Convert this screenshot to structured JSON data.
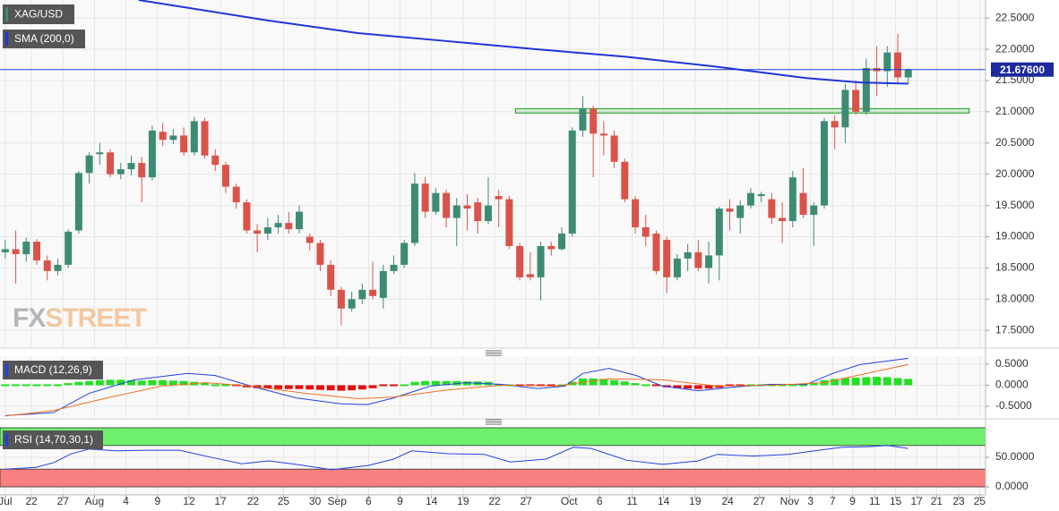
{
  "chart_data": [
    {
      "type": "candlestick",
      "title": "XAG/USD",
      "open": [
        18.75,
        18.8,
        18.72,
        18.92,
        18.62,
        18.45,
        18.55,
        19.1,
        20.02,
        20.32,
        20.35,
        20.0,
        20.08,
        20.18,
        19.95,
        20.68,
        20.55,
        20.62,
        20.35,
        20.85,
        20.3,
        20.15,
        19.8,
        19.55,
        19.1,
        19.05,
        19.15,
        19.22,
        19.12,
        19.0,
        18.9,
        18.55,
        18.15,
        17.85,
        18.0,
        18.15,
        18.02,
        18.45,
        18.55,
        18.9,
        19.85,
        19.4,
        19.7,
        19.3,
        19.5,
        19.55,
        19.25,
        19.65,
        19.6,
        18.85,
        18.4,
        18.35,
        18.85,
        18.8,
        19.05,
        20.7,
        21.05,
        20.65,
        20.62,
        20.2,
        19.6,
        19.15,
        19.05,
        18.95,
        18.35,
        18.65,
        18.75,
        18.5,
        18.7,
        19.45,
        19.3,
        19.5,
        19.65,
        19.6,
        19.3,
        19.25,
        19.7,
        19.35,
        19.5,
        20.85,
        20.75,
        21.35,
        21.0,
        21.7,
        21.65,
        21.95,
        21.55
      ],
      "high": [
        18.95,
        19.1,
        18.98,
        18.96,
        18.7,
        18.65,
        19.12,
        20.05,
        20.35,
        20.5,
        20.4,
        20.18,
        20.3,
        20.28,
        20.78,
        20.82,
        20.72,
        20.75,
        20.92,
        20.9,
        20.4,
        20.2,
        19.85,
        19.6,
        19.2,
        19.3,
        19.35,
        19.4,
        19.5,
        19.05,
        18.95,
        18.62,
        18.2,
        18.12,
        18.25,
        18.6,
        18.55,
        18.7,
        18.95,
        20.02,
        19.95,
        19.78,
        19.75,
        19.62,
        19.68,
        19.62,
        19.95,
        19.75,
        19.65,
        18.9,
        18.75,
        18.92,
        18.92,
        19.15,
        20.75,
        21.25,
        21.1,
        20.85,
        20.7,
        20.25,
        19.65,
        19.35,
        19.1,
        19.0,
        18.72,
        18.88,
        18.95,
        18.92,
        19.48,
        19.6,
        19.58,
        19.78,
        19.72,
        19.7,
        19.55,
        20.05,
        20.1,
        19.55,
        20.9,
        20.95,
        21.45,
        21.5,
        21.85,
        22.05,
        22.05,
        22.25,
        21.7
      ],
      "low": [
        18.65,
        18.25,
        18.6,
        18.55,
        18.3,
        18.38,
        18.5,
        19.05,
        19.85,
        20.15,
        19.95,
        19.92,
        19.98,
        19.55,
        19.9,
        20.45,
        20.48,
        20.3,
        20.3,
        20.25,
        20.05,
        19.7,
        19.45,
        19.05,
        18.75,
        18.95,
        19.05,
        19.05,
        19.05,
        18.78,
        18.45,
        18.05,
        17.58,
        17.8,
        17.92,
        18.0,
        17.85,
        18.4,
        18.5,
        18.85,
        19.3,
        19.35,
        19.15,
        18.85,
        19.1,
        19.05,
        19.2,
        19.15,
        18.8,
        18.3,
        18.3,
        17.98,
        18.7,
        18.78,
        19.0,
        20.6,
        19.95,
        20.3,
        20.1,
        19.55,
        19.05,
        18.85,
        18.4,
        18.1,
        18.3,
        18.45,
        18.45,
        18.25,
        18.3,
        19.1,
        19.05,
        19.45,
        19.55,
        19.2,
        18.9,
        19.15,
        19.3,
        18.85,
        19.45,
        20.4,
        20.5,
        20.95,
        20.95,
        21.25,
        21.4,
        21.45,
        21.45
      ],
      "close": [
        18.8,
        18.72,
        18.92,
        18.62,
        18.45,
        18.55,
        19.08,
        20.02,
        20.3,
        20.35,
        20.0,
        20.08,
        20.18,
        19.95,
        20.7,
        20.55,
        20.62,
        20.35,
        20.85,
        20.3,
        20.15,
        19.8,
        19.55,
        19.1,
        19.05,
        19.15,
        19.22,
        19.12,
        19.4,
        18.9,
        18.55,
        18.15,
        17.85,
        18.0,
        18.15,
        18.05,
        18.45,
        18.55,
        18.9,
        19.85,
        19.4,
        19.7,
        19.3,
        19.5,
        19.45,
        19.25,
        19.5,
        19.6,
        18.85,
        18.35,
        18.35,
        18.85,
        18.8,
        19.05,
        20.7,
        21.05,
        20.65,
        20.62,
        20.2,
        19.6,
        19.15,
        19.0,
        18.45,
        18.35,
        18.65,
        18.75,
        18.5,
        18.7,
        19.45,
        19.4,
        19.5,
        19.7,
        19.68,
        19.3,
        19.25,
        19.95,
        19.35,
        19.5,
        20.85,
        20.75,
        21.35,
        21.0,
        21.7,
        21.65,
        21.95,
        21.55,
        21.676
      ],
      "up_color": "#3d8b73",
      "down_color": "#d9534a",
      "series": [
        {
          "name": "SMA (200,0)",
          "color": "#1f35d8",
          "x": [
            12.7,
            25.1,
            33.6,
            42.2,
            50.7,
            59.2,
            67.8,
            76.3,
            81.4,
            86
          ],
          "values": [
            22.79,
            22.46,
            22.26,
            22.13,
            22.0,
            21.88,
            21.72,
            21.54,
            21.47,
            21.45
          ]
        }
      ],
      "last_price": {
        "value": 21.676,
        "label": "21.67600",
        "color": "#1f35d8"
      },
      "zone": {
        "x": [
          48.6,
          91.8
        ],
        "y": [
          20.98,
          21.05
        ],
        "color": "#8fd88f"
      },
      "watermark": [
        "FX",
        "STREET"
      ],
      "xlim": [
        -0.5,
        93.36
      ],
      "xticks": [
        {
          "value": 0,
          "label": "Jul"
        },
        {
          "value": 2.5,
          "label": "22"
        },
        {
          "value": 5.5,
          "label": "27"
        },
        {
          "value": 8.5,
          "label": "Aug"
        },
        {
          "value": 11.5,
          "label": "4"
        },
        {
          "value": 14.5,
          "label": "9"
        },
        {
          "value": 17.5,
          "label": "12"
        },
        {
          "value": 20.5,
          "label": "17"
        },
        {
          "value": 23.6,
          "label": "22"
        },
        {
          "value": 26.5,
          "label": "25"
        },
        {
          "value": 29.5,
          "label": "30"
        },
        {
          "value": 31.6,
          "label": "Sep"
        },
        {
          "value": 34.6,
          "label": "6"
        },
        {
          "value": 37.6,
          "label": "9"
        },
        {
          "value": 40.6,
          "label": "14"
        },
        {
          "value": 43.6,
          "label": "19"
        },
        {
          "value": 46.6,
          "label": "22"
        },
        {
          "value": 49.6,
          "label": "27"
        },
        {
          "value": 53.7,
          "label": "Oct"
        },
        {
          "value": 56.6,
          "label": "6"
        },
        {
          "value": 59.7,
          "label": "11"
        },
        {
          "value": 62.7,
          "label": "14"
        },
        {
          "value": 65.7,
          "label": "19"
        },
        {
          "value": 68.8,
          "label": "24"
        },
        {
          "value": 71.8,
          "label": "27"
        },
        {
          "value": 74.7,
          "label": "Nov"
        },
        {
          "value": 76.7,
          "label": "3"
        },
        {
          "value": 78.8,
          "label": "7"
        },
        {
          "value": 80.7,
          "label": "9"
        },
        {
          "value": 82.8,
          "label": "11"
        },
        {
          "value": 84.8,
          "label": "15"
        },
        {
          "value": 86.8,
          "label": "17"
        },
        {
          "value": 88.7,
          "label": "21"
        },
        {
          "value": 90.8,
          "label": "23"
        },
        {
          "value": 92.8,
          "label": "25"
        }
      ],
      "ylim": [
        17.23,
        22.79
      ],
      "yticks": [
        {
          "value": 22.5,
          "label": "22.5000"
        },
        {
          "value": 22,
          "label": "22.0000"
        },
        {
          "value": 21.5,
          "label": "21.5000"
        },
        {
          "value": 21,
          "label": "21.0000"
        },
        {
          "value": 20.5,
          "label": "20.5000"
        },
        {
          "value": 20,
          "label": "20.0000"
        },
        {
          "value": 19.5,
          "label": "19.5000"
        },
        {
          "value": 19,
          "label": "19.0000"
        },
        {
          "value": 18.5,
          "label": "18.5000"
        },
        {
          "value": 18,
          "label": "18.0000"
        },
        {
          "value": 17.5,
          "label": "17.5000"
        }
      ],
      "grid": true
    },
    {
      "type": "macd",
      "title": "MACD (12,26,9)",
      "histogram": [
        0.02,
        0.02,
        0.02,
        0.02,
        0.02,
        0.03,
        0.05,
        0.08,
        0.1,
        0.12,
        0.13,
        0.13,
        0.12,
        0.11,
        0.12,
        0.12,
        0.11,
        0.1,
        0.08,
        0.06,
        0.04,
        0.02,
        -0.02,
        -0.05,
        -0.07,
        -0.08,
        -0.09,
        -0.09,
        -0.09,
        -0.1,
        -0.11,
        -0.12,
        -0.13,
        -0.12,
        -0.1,
        -0.07,
        -0.04,
        -0.02,
        0.02,
        0.08,
        0.1,
        0.1,
        0.1,
        0.1,
        0.09,
        0.09,
        0.08,
        0.04,
        0.0,
        -0.02,
        -0.03,
        -0.02,
        -0.02,
        0.0,
        0.08,
        0.16,
        0.16,
        0.15,
        0.12,
        0.09,
        0.05,
        0.02,
        -0.02,
        -0.05,
        -0.07,
        -0.08,
        -0.09,
        -0.08,
        -0.06,
        -0.04,
        -0.02,
        0.01,
        0.03,
        0.04,
        0.03,
        0.02,
        0.03,
        0.06,
        0.12,
        0.15,
        0.17,
        0.18,
        0.19,
        0.2,
        0.19,
        0.17,
        0.15
      ],
      "up_color": "#22e022",
      "down_color": "#e01010",
      "macd": {
        "color": "#2040e0",
        "x": [
          0,
          4.6,
          8,
          12.3,
          17.4,
          20,
          23.4,
          27.7,
          31.9,
          34.5,
          37,
          40.5,
          43.9,
          47.3,
          50.7,
          53.3,
          55,
          57.5,
          60.1,
          62.6,
          66,
          69.5,
          72.9,
          76.3,
          78.8,
          81.4,
          86
        ],
        "values": [
          -0.72,
          -0.65,
          -0.19,
          0.13,
          0.28,
          0.23,
          -0.02,
          -0.3,
          -0.44,
          -0.46,
          -0.3,
          -0.02,
          0.06,
          0.02,
          -0.08,
          -0.02,
          0.28,
          0.4,
          0.23,
          -0.02,
          -0.13,
          -0.04,
          0.02,
          0.02,
          0.28,
          0.49,
          0.64
        ]
      },
      "signal": {
        "color": "#f07020",
        "x": [
          0,
          4.6,
          9.7,
          14.9,
          19.1,
          23.4,
          28.5,
          33.6,
          37,
          42.2,
          47.3,
          52.4,
          57.5,
          62.6,
          67.8,
          72.9,
          78,
          83.1,
          86
        ],
        "values": [
          -0.73,
          -0.6,
          -0.3,
          -0.02,
          0.06,
          -0.02,
          -0.19,
          -0.32,
          -0.28,
          -0.11,
          0,
          -0.02,
          0.15,
          0.13,
          -0.02,
          0,
          0.06,
          0.34,
          0.49
        ]
      },
      "ylim": [
        -0.755,
        0.69
      ],
      "yticks": [
        {
          "value": 0.5,
          "label": "0.5000"
        },
        {
          "value": 0,
          "label": "0.0000"
        },
        {
          "value": -0.5,
          "label": "-0.5000"
        }
      ]
    },
    {
      "type": "rsi",
      "title": "RSI (14,70,30,1)",
      "color": "#2040e0",
      "x": [
        0,
        2.9,
        4.6,
        6.3,
        8,
        10.6,
        13.2,
        16.6,
        19.1,
        22.5,
        25.1,
        27.7,
        31.1,
        34.5,
        37,
        38.7,
        42.2,
        45.6,
        48.1,
        51.5,
        54.1,
        55.8,
        59.2,
        62.6,
        66,
        67.8,
        71.2,
        74.6,
        77.1,
        79.7,
        82.3,
        84,
        86
      ],
      "values": [
        30,
        33,
        41,
        56,
        64,
        61,
        62,
        62,
        52,
        39,
        44,
        38,
        29,
        36,
        47,
        61,
        56,
        55,
        42,
        47,
        67,
        65,
        45,
        38,
        44,
        55,
        52,
        55,
        61,
        67,
        68,
        70,
        65
      ],
      "overbought": [
        70,
        100
      ],
      "overbought_color": "#6ef06e",
      "oversold": [
        0,
        30
      ],
      "oversold_color": "#f88080",
      "ylim": [
        -13.6,
        101.5
      ],
      "yticks": [
        {
          "value": 50,
          "label": "50.0000"
        },
        {
          "value": 0,
          "label": "0.0000"
        }
      ]
    }
  ]
}
